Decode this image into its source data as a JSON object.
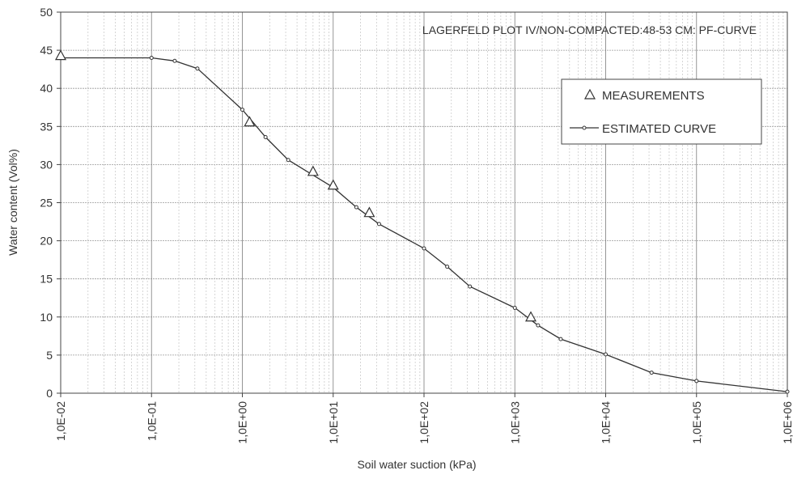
{
  "chart_data": {
    "type": "line",
    "title": "LAGERFELD PLOT IV/NON-COMPACTED:48-53 CM: PF-CURVE",
    "xlabel": "Soil water suction (kPa)",
    "ylabel": "Water content (Vol%)",
    "x_scale": "log",
    "xlim": [
      0.01,
      1000000
    ],
    "ylim": [
      0,
      50
    ],
    "x_ticks": [
      0.01,
      0.1,
      1,
      10,
      100,
      1000,
      10000,
      100000,
      1000000
    ],
    "x_tick_labels": [
      "1,0E-02",
      "1,0E-01",
      "1,0E+00",
      "1,0E+01",
      "1,0E+02",
      "1,0E+03",
      "1,0E+04",
      "1,0E+05",
      "1,0E+06"
    ],
    "y_ticks": [
      0,
      5,
      10,
      15,
      20,
      25,
      30,
      35,
      40,
      45,
      50
    ],
    "y_tick_labels": [
      "0",
      "5",
      "10",
      "15",
      "20",
      "25",
      "30",
      "35",
      "40",
      "45",
      "50"
    ],
    "grid": true,
    "legend_position": "upper-right",
    "series": [
      {
        "name": "MEASUREMENTS",
        "marker": "triangle",
        "x": [
          0.01,
          1.2,
          6,
          10,
          25,
          1500
        ],
        "y": [
          44.2,
          35.5,
          29,
          27.2,
          23.6,
          9.9
        ]
      },
      {
        "name": "ESTIMATED CURVE",
        "marker": "small-circle",
        "x": [
          0.01,
          0.1,
          0.18,
          0.32,
          1,
          1.8,
          3.2,
          10,
          18,
          32,
          100,
          180,
          320,
          1000,
          1800,
          3200,
          10000,
          32000,
          100000,
          1000000
        ],
        "y": [
          44,
          44,
          43.6,
          42.6,
          37.2,
          33.6,
          30.6,
          27,
          24.4,
          22.2,
          19,
          16.6,
          14,
          11.2,
          8.9,
          7.1,
          5.1,
          2.7,
          1.6,
          0.2
        ]
      }
    ]
  }
}
